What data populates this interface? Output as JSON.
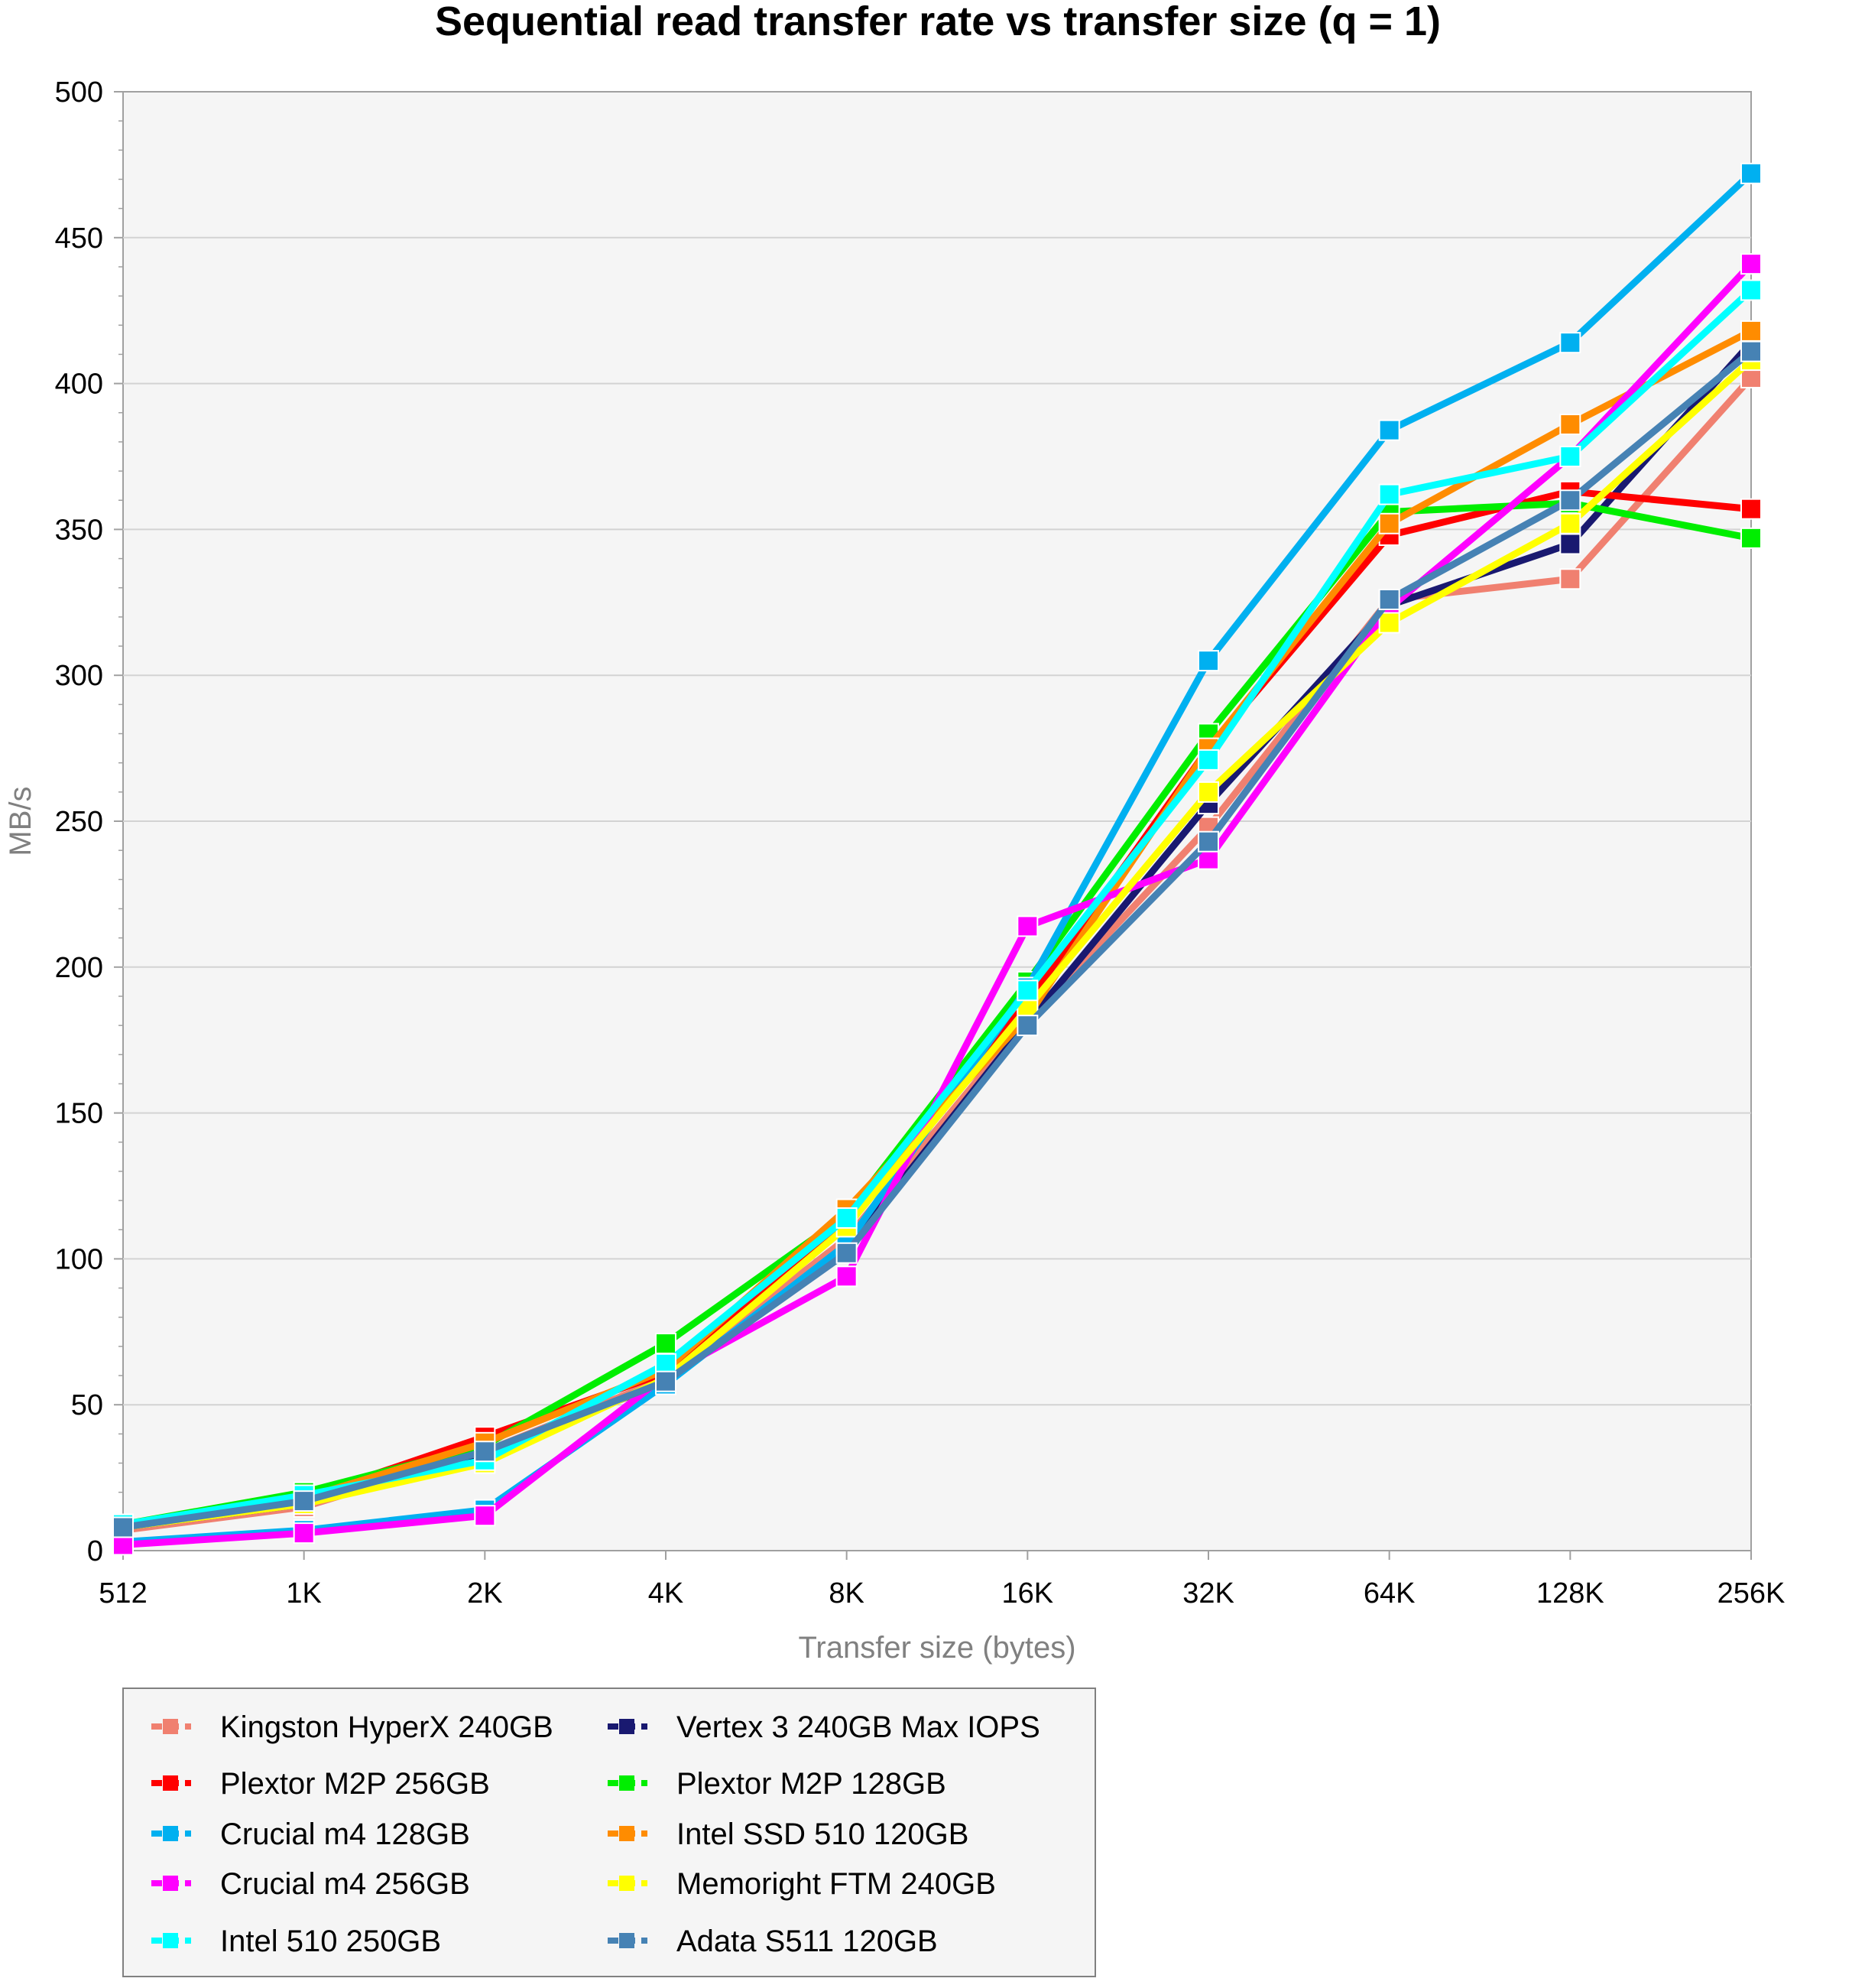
{
  "chart_data": {
    "type": "line",
    "title": "Sequential read transfer rate vs transfer size (q = 1)",
    "xlabel": "Transfer size (bytes)",
    "ylabel": "MB/s",
    "categories": [
      "512",
      "1K",
      "2K",
      "4K",
      "8K",
      "16K",
      "32K",
      "64K",
      "128K",
      "256K"
    ],
    "ylim": [
      0,
      500
    ],
    "yticks": [
      0,
      50,
      100,
      150,
      200,
      250,
      300,
      350,
      400,
      450,
      500
    ],
    "grid": true,
    "legend_position": "bottom",
    "series": [
      {
        "name": "Kingston HyperX 240GB",
        "color": "#f08070",
        "values": [
          7,
          15,
          34,
          59,
          107,
          182,
          248,
          326,
          333,
          402
        ]
      },
      {
        "name": "Vertex 3 240GB Max IOPS",
        "color": "#191970",
        "values": [
          8,
          16,
          33,
          58,
          103,
          181,
          256,
          324,
          345,
          414
        ]
      },
      {
        "name": "Plextor M2P 256GB",
        "color": "#ff0000",
        "values": [
          8,
          18,
          39,
          61,
          113,
          188,
          275,
          348,
          363,
          357
        ]
      },
      {
        "name": "Plextor M2P 128GB",
        "color": "#00ee00",
        "values": [
          9,
          20,
          36,
          71,
          115,
          195,
          280,
          356,
          359,
          347
        ]
      },
      {
        "name": "Crucial m4 128GB",
        "color": "#00b0f0",
        "values": [
          3,
          7,
          14,
          57,
          105,
          193,
          305,
          384,
          414,
          472
        ]
      },
      {
        "name": "Intel SSD 510 120GB",
        "color": "#ff8c00",
        "values": [
          8,
          18,
          37,
          62,
          117,
          183,
          275,
          352,
          386,
          418
        ]
      },
      {
        "name": "Crucial m4 256GB",
        "color": "#ff00ff",
        "values": [
          2,
          6,
          12,
          60,
          94,
          214,
          237,
          323,
          375,
          441
        ]
      },
      {
        "name": "Memoright FTM 240GB",
        "color": "#ffff00",
        "values": [
          8,
          16,
          30,
          59,
          111,
          186,
          260,
          318,
          352,
          408
        ]
      },
      {
        "name": "Intel 510 250GB",
        "color": "#00ffff",
        "values": [
          9,
          19,
          31,
          64,
          114,
          192,
          271,
          362,
          375,
          432
        ]
      },
      {
        "name": "Adata S511 120GB",
        "color": "#4682b4",
        "values": [
          8,
          17,
          34,
          58,
          102,
          180,
          243,
          326,
          360,
          411
        ]
      }
    ]
  }
}
